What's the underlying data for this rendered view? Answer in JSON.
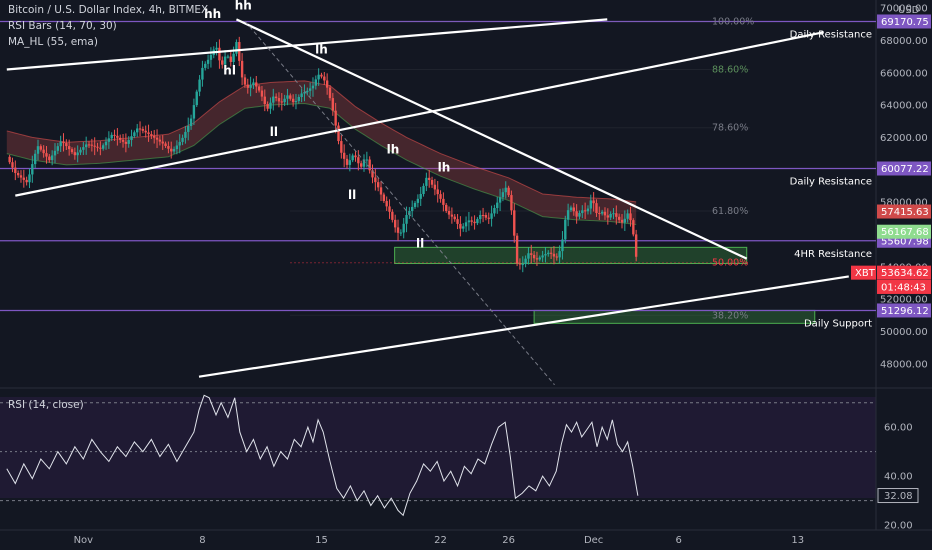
{
  "header": {
    "symbol_line": "Bitcoin / U.S. Dollar Index, 4h, BITMEX",
    "indicator_1": "RSI Bars (14, 70, 30)",
    "indicator_2": "MA_HL (55, ema)",
    "currency": "USD"
  },
  "rsi_panel": {
    "title": "RSI (14, close)",
    "current_value": "32.08",
    "yticks": [
      "60.00",
      "40.00",
      "20.00"
    ]
  },
  "chart_data": {
    "type": "candlestick",
    "ylim": [
      46500,
      70500
    ],
    "yticks": [
      70000,
      68000,
      66000,
      64000,
      62000,
      60000,
      58000,
      56000,
      54000,
      52000,
      50000,
      48000
    ],
    "ytick_labels": [
      "70000.00",
      "68000.00",
      "66000.00",
      "64000.00",
      "62000.00",
      "60000.00",
      "58000.00",
      "56000.00",
      "54000.00",
      "52000.00",
      "50000.00",
      "48000.00"
    ],
    "xticks": [
      {
        "label": "Nov",
        "day": 1
      },
      {
        "label": "8",
        "day": 8
      },
      {
        "label": "15",
        "day": 15
      },
      {
        "label": "22",
        "day": 22
      },
      {
        "label": "26",
        "day": 26
      },
      {
        "label": "Dec",
        "day": 31
      },
      {
        "label": "6",
        "day": 36
      },
      {
        "label": "13",
        "day": 43
      }
    ],
    "price_path": [
      [
        -3.5,
        60800
      ],
      [
        -3,
        59800
      ],
      [
        -2.3,
        59200
      ],
      [
        -1.7,
        61500
      ],
      [
        -1,
        60600
      ],
      [
        -0.3,
        61800
      ],
      [
        0.5,
        60900
      ],
      [
        1.2,
        61600
      ],
      [
        2,
        61300
      ],
      [
        2.7,
        62200
      ],
      [
        3.5,
        61600
      ],
      [
        4.2,
        62600
      ],
      [
        5,
        62100
      ],
      [
        5.7,
        61600
      ],
      [
        6.2,
        61100
      ],
      [
        6.8,
        61900
      ],
      [
        7.3,
        63000
      ],
      [
        7.7,
        65000
      ],
      [
        8,
        66300
      ],
      [
        8.4,
        66900
      ],
      [
        8.8,
        67700
      ],
      [
        9.1,
        66300
      ],
      [
        9.4,
        67200
      ],
      [
        9.7,
        66600
      ],
      [
        10,
        67900
      ],
      [
        10.3,
        65800
      ],
      [
        10.6,
        65000
      ],
      [
        11,
        65400
      ],
      [
        11.4,
        64800
      ],
      [
        11.8,
        63700
      ],
      [
        12.2,
        64600
      ],
      [
        12.6,
        64100
      ],
      [
        13,
        64600
      ],
      [
        13.4,
        64100
      ],
      [
        13.8,
        64700
      ],
      [
        14.2,
        64900
      ],
      [
        14.5,
        65200
      ],
      [
        14.8,
        65900
      ],
      [
        15.1,
        65700
      ],
      [
        15.4,
        64900
      ],
      [
        15.7,
        63500
      ],
      [
        16.1,
        61200
      ],
      [
        16.5,
        60300
      ],
      [
        16.9,
        61000
      ],
      [
        17.3,
        60100
      ],
      [
        17.6,
        60900
      ],
      [
        17.9,
        59700
      ],
      [
        18.3,
        59000
      ],
      [
        18.6,
        58200
      ],
      [
        19,
        57400
      ],
      [
        19.3,
        56500
      ],
      [
        19.6,
        55900
      ],
      [
        20,
        57200
      ],
      [
        20.4,
        57800
      ],
      [
        20.8,
        58400
      ],
      [
        21.2,
        59600
      ],
      [
        21.6,
        58900
      ],
      [
        22,
        58200
      ],
      [
        22.4,
        57300
      ],
      [
        22.8,
        57000
      ],
      [
        23.2,
        56300
      ],
      [
        23.6,
        56900
      ],
      [
        24,
        56700
      ],
      [
        24.4,
        57300
      ],
      [
        24.8,
        56900
      ],
      [
        25.2,
        57700
      ],
      [
        25.6,
        58500
      ],
      [
        25.9,
        59000
      ],
      [
        26.2,
        57300
      ],
      [
        26.5,
        54200
      ],
      [
        26.8,
        54100
      ],
      [
        27.2,
        54900
      ],
      [
        27.6,
        54400
      ],
      [
        28,
        54700
      ],
      [
        28.4,
        54900
      ],
      [
        28.8,
        54500
      ],
      [
        29.1,
        55200
      ],
      [
        29.4,
        57400
      ],
      [
        29.7,
        57700
      ],
      [
        30,
        57100
      ],
      [
        30.3,
        57500
      ],
      [
        30.6,
        57400
      ],
      [
        30.9,
        58300
      ],
      [
        31.2,
        57200
      ],
      [
        31.5,
        57400
      ],
      [
        31.8,
        57000
      ],
      [
        32.1,
        57400
      ],
      [
        32.4,
        57000
      ],
      [
        32.7,
        56700
      ],
      [
        33,
        57300
      ],
      [
        33.2,
        56800
      ],
      [
        33.4,
        55600
      ],
      [
        33.6,
        53634
      ]
    ],
    "ma_path": [
      [
        -3.5,
        61700
      ],
      [
        -2,
        61300
      ],
      [
        0,
        61000
      ],
      [
        2,
        61100
      ],
      [
        4,
        61300
      ],
      [
        6,
        61500
      ],
      [
        7.5,
        62200
      ],
      [
        9,
        63500
      ],
      [
        10.5,
        64500
      ],
      [
        12,
        64700
      ],
      [
        14,
        64800
      ],
      [
        15.5,
        64500
      ],
      [
        17,
        63200
      ],
      [
        18.5,
        62200
      ],
      [
        20,
        61300
      ],
      [
        22,
        60300
      ],
      [
        24,
        59500
      ],
      [
        26,
        58800
      ],
      [
        28,
        57800
      ],
      [
        30,
        57600
      ],
      [
        32,
        57500
      ],
      [
        33.6,
        57300
      ]
    ],
    "rsi_path": [
      [
        -3.5,
        43
      ],
      [
        -3,
        37
      ],
      [
        -2.5,
        45
      ],
      [
        -2,
        39
      ],
      [
        -1.5,
        47
      ],
      [
        -1,
        43
      ],
      [
        -0.5,
        50
      ],
      [
        0,
        45
      ],
      [
        0.5,
        52
      ],
      [
        1,
        47
      ],
      [
        1.5,
        55
      ],
      [
        2,
        50
      ],
      [
        2.5,
        46
      ],
      [
        3,
        52
      ],
      [
        3.5,
        48
      ],
      [
        4,
        54
      ],
      [
        4.5,
        50
      ],
      [
        5,
        55
      ],
      [
        5.5,
        48
      ],
      [
        6,
        53
      ],
      [
        6.5,
        46
      ],
      [
        7,
        52
      ],
      [
        7.5,
        58
      ],
      [
        7.8,
        67
      ],
      [
        8.1,
        73
      ],
      [
        8.4,
        72
      ],
      [
        8.8,
        65
      ],
      [
        9.1,
        70
      ],
      [
        9.5,
        64
      ],
      [
        9.9,
        72
      ],
      [
        10.2,
        58
      ],
      [
        10.6,
        50
      ],
      [
        11,
        55
      ],
      [
        11.4,
        47
      ],
      [
        11.8,
        52
      ],
      [
        12.2,
        44
      ],
      [
        12.6,
        50
      ],
      [
        13,
        47
      ],
      [
        13.4,
        55
      ],
      [
        13.8,
        52
      ],
      [
        14.2,
        60
      ],
      [
        14.5,
        54
      ],
      [
        14.8,
        63
      ],
      [
        15.1,
        58
      ],
      [
        15.5,
        46
      ],
      [
        15.9,
        35
      ],
      [
        16.3,
        31
      ],
      [
        16.7,
        36
      ],
      [
        17.1,
        30
      ],
      [
        17.5,
        34
      ],
      [
        17.9,
        28
      ],
      [
        18.3,
        32
      ],
      [
        18.7,
        27
      ],
      [
        19.1,
        31
      ],
      [
        19.5,
        26
      ],
      [
        19.8,
        24
      ],
      [
        20.2,
        33
      ],
      [
        20.6,
        38
      ],
      [
        21,
        45
      ],
      [
        21.4,
        42
      ],
      [
        21.8,
        46
      ],
      [
        22.2,
        38
      ],
      [
        22.6,
        42
      ],
      [
        23,
        36
      ],
      [
        23.4,
        44
      ],
      [
        23.8,
        41
      ],
      [
        24.2,
        47
      ],
      [
        24.6,
        45
      ],
      [
        25,
        53
      ],
      [
        25.4,
        60
      ],
      [
        25.8,
        62
      ],
      [
        26.1,
        48
      ],
      [
        26.4,
        31
      ],
      [
        26.8,
        33
      ],
      [
        27.2,
        36
      ],
      [
        27.6,
        34
      ],
      [
        28,
        40
      ],
      [
        28.4,
        36
      ],
      [
        28.8,
        42
      ],
      [
        29.1,
        53
      ],
      [
        29.4,
        61
      ],
      [
        29.7,
        58
      ],
      [
        30,
        62
      ],
      [
        30.3,
        56
      ],
      [
        30.6,
        59
      ],
      [
        30.9,
        62
      ],
      [
        31.2,
        52
      ],
      [
        31.5,
        60
      ],
      [
        31.8,
        55
      ],
      [
        32.1,
        63
      ],
      [
        32.4,
        53
      ],
      [
        32.7,
        50
      ],
      [
        33,
        54
      ],
      [
        33.3,
        44
      ],
      [
        33.6,
        32
      ]
    ],
    "horizontal_levels": [
      {
        "name": "Daily Resistance",
        "value": 69170.75,
        "label": "69170.75"
      },
      {
        "name": "Daily Resistance",
        "value": 60077.22,
        "label": "60077.22"
      },
      {
        "name": "4HR Resistance",
        "value": 55607.98,
        "label": "55607.98"
      },
      {
        "name": "",
        "value": 51296.12,
        "label": "51296.12"
      }
    ],
    "level_captions": [
      "Daily Resistance",
      "Daily Resistance",
      "4HR Resistance",
      "Daily Support"
    ],
    "fib_levels": [
      {
        "label": "100.00%",
        "value": 69170.75
      },
      {
        "label": "88.60%",
        "value": 66200
      },
      {
        "label": "78.60%",
        "value": 62600
      },
      {
        "label": "61.80%",
        "value": 57450
      },
      {
        "label": "50.00%",
        "value": 54250
      },
      {
        "label": "38.20%",
        "value": 51000
      }
    ],
    "price_tags": [
      {
        "label": "57415.63",
        "value": 57415.63,
        "color": "#d04a4a"
      },
      {
        "label": "56167.68",
        "value": 56167.68,
        "color": "#8fdc8f"
      },
      {
        "label": "53634.62",
        "value": 53634.62,
        "color": "#f23645"
      },
      {
        "label": "01:48:43",
        "value": 52750,
        "color": "#f23645"
      }
    ],
    "xbt_tag": "XBT",
    "zones": [
      {
        "x0": 19.3,
        "x1": 40.0,
        "y0": 54200,
        "y1": 55200
      },
      {
        "x0": 27.5,
        "x1": 44.0,
        "y0": 50500,
        "y1": 51300
      }
    ],
    "annotations": [
      {
        "text": "hh",
        "x": 8.6,
        "y": 69400
      },
      {
        "text": "hh",
        "x": 10.4,
        "y": 69900
      },
      {
        "text": "hl",
        "x": 9.6,
        "y": 65900
      },
      {
        "text": "lh",
        "x": 15.0,
        "y": 67200
      },
      {
        "text": "ll",
        "x": 12.2,
        "y": 62100
      },
      {
        "text": "lh",
        "x": 19.2,
        "y": 61000
      },
      {
        "text": "ll",
        "x": 16.8,
        "y": 58200
      },
      {
        "text": "lh",
        "x": 22.2,
        "y": 59900
      },
      {
        "text": "ll",
        "x": 20.8,
        "y": 55200
      }
    ],
    "trend_lines": [
      {
        "from": [
          -3.5,
          66200
        ],
        "to": [
          31.8,
          69300
        ]
      },
      {
        "from": [
          -3.0,
          58400
        ],
        "to": [
          44.5,
          68500
        ]
      },
      {
        "from": [
          10.0,
          69300
        ],
        "to": [
          40.0,
          54500
        ]
      },
      {
        "from": [
          7.8,
          47200
        ],
        "to": [
          46.0,
          53400
        ]
      }
    ],
    "dashed_line": {
      "from": [
        10.5,
        69200
      ],
      "to": [
        28.7,
        46700
      ]
    },
    "rsi_ylim": [
      18,
      76
    ],
    "rsi_levels": [
      70,
      50,
      30
    ]
  }
}
